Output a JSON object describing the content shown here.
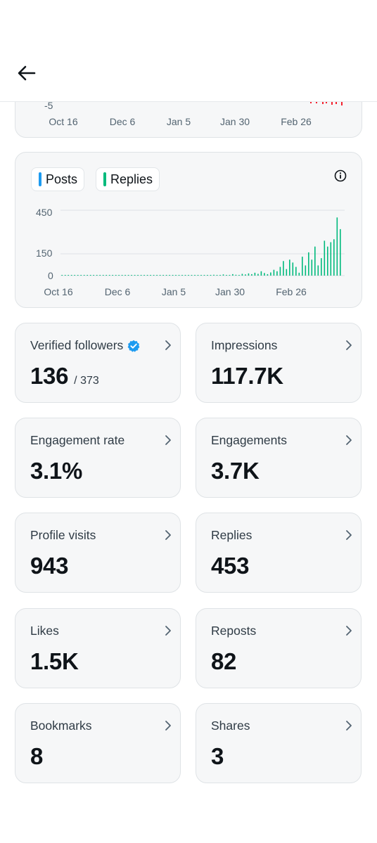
{
  "top_chart": {
    "y_tick": "-5",
    "x_ticks": [
      "Oct 16",
      "Dec 6",
      "Jan 5",
      "Jan 30",
      "Feb 26"
    ]
  },
  "activity_chart": {
    "legend": [
      {
        "label": "Posts",
        "color": "#1d9bf0"
      },
      {
        "label": "Replies",
        "color": "#00ba7c"
      }
    ],
    "y_ticks": [
      "450",
      "150",
      "0"
    ],
    "x_ticks": [
      "Oct 16",
      "Dec 6",
      "Jan 5",
      "Jan 30",
      "Feb 26"
    ]
  },
  "chart_data": {
    "type": "bar",
    "series": [
      {
        "name": "Replies",
        "color": "#00ba7c",
        "values": [
          2,
          1,
          3,
          2,
          1,
          2,
          1,
          0,
          2,
          3,
          1,
          2,
          0,
          1,
          2,
          1,
          3,
          1,
          2,
          0,
          1,
          2,
          1,
          1,
          3,
          2,
          1,
          2,
          0,
          1,
          3,
          2,
          1,
          2,
          1,
          0,
          2,
          3,
          2,
          1,
          2,
          4,
          3,
          2,
          3,
          2,
          5,
          3,
          6,
          4,
          3,
          8,
          5,
          4,
          10,
          6,
          5,
          12,
          8,
          15,
          10,
          20,
          12,
          30,
          18,
          10,
          22,
          40,
          30,
          60,
          100,
          45,
          110,
          90,
          60,
          20,
          130,
          70,
          160,
          110,
          200,
          70,
          120,
          240,
          200,
          230,
          250,
          400,
          320
        ]
      },
      {
        "name": "Posts",
        "color": "#1d9bf0",
        "values": []
      }
    ],
    "ylim": [
      0,
      500
    ],
    "y_ticks": [
      0,
      150,
      450
    ],
    "x_tick_labels": [
      "Oct 16",
      "Dec 6",
      "Jan 5",
      "Jan 30",
      "Feb 26"
    ],
    "grid": true,
    "legend_position": "top-left"
  },
  "metrics": [
    {
      "title": "Verified followers",
      "value": "136",
      "sub": "/ 373",
      "verified": true
    },
    {
      "title": "Impressions",
      "value": "117.7K"
    },
    {
      "title": "Engagement rate",
      "value": "3.1%"
    },
    {
      "title": "Engagements",
      "value": "3.7K"
    },
    {
      "title": "Profile visits",
      "value": "943"
    },
    {
      "title": "Replies",
      "value": "453"
    },
    {
      "title": "Likes",
      "value": "1.5K"
    },
    {
      "title": "Reposts",
      "value": "82"
    },
    {
      "title": "Bookmarks",
      "value": "8"
    },
    {
      "title": "Shares",
      "value": "3"
    }
  ]
}
